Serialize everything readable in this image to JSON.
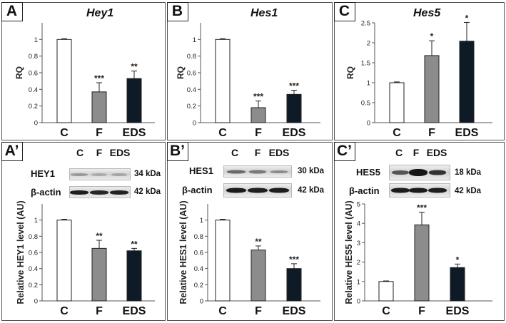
{
  "panels": {
    "A": {
      "label": "A",
      "title": "Hey1"
    },
    "B": {
      "label": "B",
      "title": "Hes1"
    },
    "C": {
      "label": "C",
      "title": "Hes5"
    },
    "A2": {
      "label": "A’"
    },
    "B2": {
      "label": "B’"
    },
    "C2": {
      "label": "C’"
    }
  },
  "blots": {
    "A2": {
      "columns": [
        "C",
        "F",
        "EDS"
      ],
      "protein": "HEY1",
      "protein_kda": "34 kDa",
      "loading": "β-actin",
      "loading_kda": "42 kDa"
    },
    "B2": {
      "columns": [
        "C",
        "F",
        "EDS"
      ],
      "protein": "HES1",
      "protein_kda": "30 kDa",
      "loading": "β-actin",
      "loading_kda": "42 kDa"
    },
    "C2": {
      "columns": [
        "C",
        "F",
        "EDS"
      ],
      "protein": "HES5",
      "protein_kda": "18 kDa",
      "loading": "β-actin",
      "loading_kda": "42 kDa"
    }
  },
  "colors": {
    "control": "#ffffff",
    "F": "#8c8c8c",
    "EDS": "#0e1a26",
    "axis": "#555555"
  },
  "chart_data": [
    {
      "id": "A",
      "type": "bar",
      "title": "Hey1",
      "ylabel": "RQ",
      "categories": [
        "C",
        "F",
        "EDS"
      ],
      "values": [
        1.0,
        0.37,
        0.53
      ],
      "errors": [
        0.01,
        0.11,
        0.09
      ],
      "significance": [
        "",
        "***",
        "**"
      ],
      "ylim": [
        0,
        1.2
      ],
      "yticks": [
        0,
        0.2,
        0.4,
        0.6,
        0.8,
        1
      ],
      "ytick_labels": [
        "0",
        "0.2",
        "0.4",
        "0.6",
        "0.8",
        "1"
      ]
    },
    {
      "id": "B",
      "type": "bar",
      "title": "Hes1",
      "ylabel": "RQ",
      "categories": [
        "C",
        "F",
        "EDS"
      ],
      "values": [
        1.0,
        0.18,
        0.34
      ],
      "errors": [
        0.01,
        0.08,
        0.05
      ],
      "significance": [
        "",
        "***",
        "***"
      ],
      "ylim": [
        0,
        1.2
      ],
      "yticks": [
        0,
        0.2,
        0.4,
        0.6,
        0.8,
        1
      ],
      "ytick_labels": [
        "0",
        "0.2",
        "0.4",
        "0.6",
        "0.8",
        "1"
      ]
    },
    {
      "id": "C",
      "type": "bar",
      "title": "Hes5",
      "ylabel": "RQ",
      "categories": [
        "C",
        "F",
        "EDS"
      ],
      "values": [
        1.0,
        1.68,
        2.04
      ],
      "errors": [
        0.02,
        0.37,
        0.47
      ],
      "significance": [
        "",
        "*",
        "*"
      ],
      "ylim": [
        0,
        2.5
      ],
      "yticks": [
        0,
        0.5,
        1,
        1.5,
        2,
        2.5
      ],
      "ytick_labels": [
        "0",
        "0.5",
        "1",
        "1.5",
        "2",
        "2.5"
      ]
    },
    {
      "id": "A2",
      "type": "bar",
      "ylabel": "Relative HEY1 level (AU)",
      "categories": [
        "C",
        "F",
        "EDS"
      ],
      "values": [
        1.0,
        0.65,
        0.62
      ],
      "errors": [
        0.01,
        0.1,
        0.03
      ],
      "significance": [
        "",
        "**",
        "**"
      ],
      "ylim": [
        0,
        1.2
      ],
      "yticks": [
        0,
        0.2,
        0.4,
        0.6,
        0.8,
        1
      ],
      "ytick_labels": [
        "0",
        "0.2",
        "0.4",
        "0.6",
        "0.8",
        "1"
      ]
    },
    {
      "id": "B2",
      "type": "bar",
      "ylabel": "Relative HES1 level (AU)",
      "categories": [
        "C",
        "F",
        "EDS"
      ],
      "values": [
        1.0,
        0.63,
        0.4
      ],
      "errors": [
        0.01,
        0.05,
        0.06
      ],
      "significance": [
        "",
        "**",
        "***"
      ],
      "ylim": [
        0,
        1.2
      ],
      "yticks": [
        0,
        0.2,
        0.4,
        0.6,
        0.8,
        1
      ],
      "ytick_labels": [
        "0",
        "0.2",
        "0.4",
        "0.6",
        "0.8",
        "1"
      ]
    },
    {
      "id": "C2",
      "type": "bar",
      "ylabel": "Relative HES5 level (AU)",
      "categories": [
        "C",
        "F",
        "EDS"
      ],
      "values": [
        1.0,
        3.92,
        1.72
      ],
      "errors": [
        0.03,
        0.65,
        0.18
      ],
      "significance": [
        "",
        "***",
        "*"
      ],
      "ylim": [
        0,
        5
      ],
      "yticks": [
        0,
        1,
        2,
        3,
        4,
        5
      ],
      "ytick_labels": [
        "0",
        "1",
        "2",
        "3",
        "4",
        "5"
      ]
    }
  ]
}
